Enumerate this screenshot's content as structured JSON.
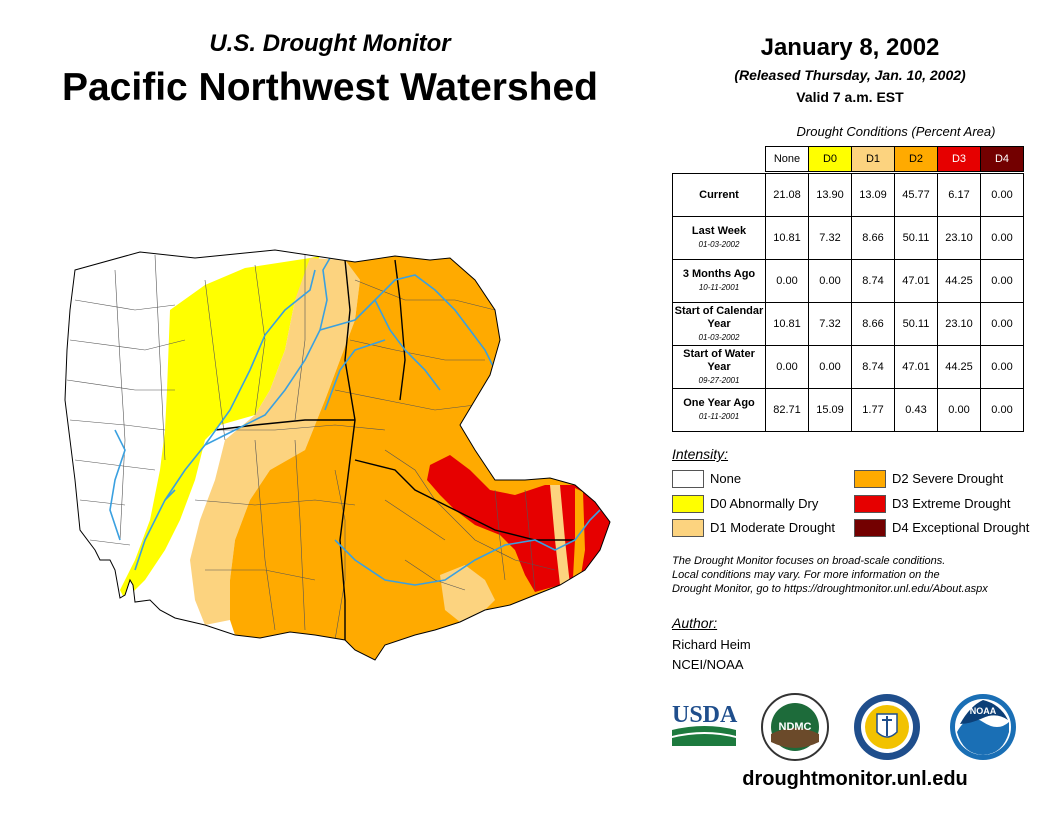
{
  "header": {
    "subtitle": "U.S. Drought Monitor",
    "title": "Pacific Northwest Watershed",
    "date": "January 8, 2002",
    "released": "(Released Thursday, Jan. 10, 2002)",
    "valid": "Valid 7 a.m. EST"
  },
  "table": {
    "caption": "Drought Conditions (Percent Area)",
    "columns": [
      "None",
      "D0",
      "D1",
      "D2",
      "D3",
      "D4"
    ],
    "rows": [
      {
        "label": "Current",
        "date": "",
        "values": [
          "21.08",
          "13.90",
          "13.09",
          "45.77",
          "6.17",
          "0.00"
        ]
      },
      {
        "label": "Last Week",
        "date": "01-03-2002",
        "values": [
          "10.81",
          "7.32",
          "8.66",
          "50.11",
          "23.10",
          "0.00"
        ]
      },
      {
        "label": "3 Months Ago",
        "date": "10-11-2001",
        "values": [
          "0.00",
          "0.00",
          "8.74",
          "47.01",
          "44.25",
          "0.00"
        ]
      },
      {
        "label": "Start of Calendar Year",
        "date": "01-03-2002",
        "values": [
          "10.81",
          "7.32",
          "8.66",
          "50.11",
          "23.10",
          "0.00"
        ]
      },
      {
        "label": "Start of Water Year",
        "date": "09-27-2001",
        "values": [
          "0.00",
          "0.00",
          "8.74",
          "47.01",
          "44.25",
          "0.00"
        ]
      },
      {
        "label": "One Year Ago",
        "date": "01-11-2001",
        "values": [
          "82.71",
          "15.09",
          "1.77",
          "0.43",
          "0.00",
          "0.00"
        ]
      }
    ]
  },
  "legend": {
    "title": "Intensity:",
    "items": [
      {
        "label": "None",
        "color": "#ffffff"
      },
      {
        "label": "D0 Abnormally Dry",
        "color": "#ffff00"
      },
      {
        "label": "D1 Moderate Drought",
        "color": "#fcd37f"
      },
      {
        "label": "D2 Severe Drought",
        "color": "#ffaa00"
      },
      {
        "label": "D3 Extreme Drought",
        "color": "#e60000"
      },
      {
        "label": "D4 Exceptional Drought",
        "color": "#730000"
      }
    ]
  },
  "note": {
    "line1": "The Drought Monitor focuses on broad-scale conditions.",
    "line2": "Local conditions may vary. For more information on the",
    "line3": "Drought Monitor, go to https://droughtmonitor.unl.edu/About.aspx"
  },
  "author": {
    "title": "Author:",
    "name": "Richard Heim",
    "org": "NCEI/NOAA"
  },
  "logos": {
    "usda": "USDA",
    "ndmc": "NDMC",
    "noaa": "NOAA"
  },
  "footer": {
    "url": "droughtmonitor.unl.edu"
  }
}
